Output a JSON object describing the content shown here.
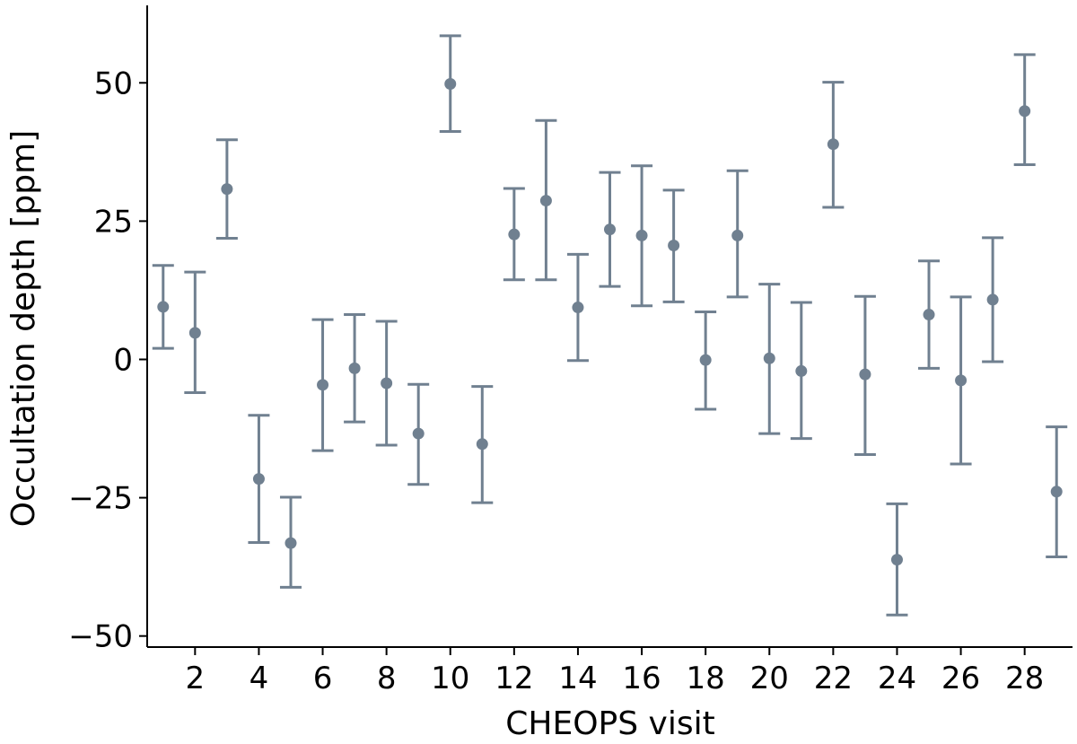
{
  "chart_data": {
    "type": "scatter",
    "xlabel": "CHEOPS visit",
    "ylabel": "Occultation depth [ppm]",
    "xlim": [
      0.5,
      29.5
    ],
    "ylim": [
      -52,
      64
    ],
    "xticks": [
      2,
      4,
      6,
      8,
      10,
      12,
      14,
      16,
      18,
      20,
      22,
      24,
      26,
      28
    ],
    "yticks": [
      -50,
      -25,
      0,
      25,
      50
    ],
    "ytick_labels": [
      "−50",
      "−25",
      "0",
      "25",
      "50"
    ],
    "grid": false,
    "marker_color": "#708090",
    "series": [
      {
        "points": [
          {
            "x": 1,
            "y": 9.5,
            "lo": 2,
            "hi": 17
          },
          {
            "x": 2,
            "y": 4.8,
            "lo": -6,
            "hi": 15.8
          },
          {
            "x": 3,
            "y": 30.8,
            "lo": 21.9,
            "hi": 39.7
          },
          {
            "x": 4,
            "y": -21.6,
            "lo": -33.1,
            "hi": -10.1
          },
          {
            "x": 5,
            "y": -33.2,
            "lo": -41.2,
            "hi": -24.9
          },
          {
            "x": 6,
            "y": -4.6,
            "lo": -16.5,
            "hi": 7.2
          },
          {
            "x": 7,
            "y": -1.6,
            "lo": -11.3,
            "hi": 8.1
          },
          {
            "x": 8,
            "y": -4.3,
            "lo": -15.5,
            "hi": 6.9
          },
          {
            "x": 9,
            "y": -13.4,
            "lo": -22.6,
            "hi": -4.5
          },
          {
            "x": 10,
            "y": 49.8,
            "lo": 41.2,
            "hi": 58.5
          },
          {
            "x": 11,
            "y": -15.3,
            "lo": -25.9,
            "hi": -4.9
          },
          {
            "x": 12,
            "y": 22.6,
            "lo": 14.4,
            "hi": 30.9
          },
          {
            "x": 13,
            "y": 28.7,
            "lo": 14.4,
            "hi": 43.2
          },
          {
            "x": 14,
            "y": 9.4,
            "lo": -0.2,
            "hi": 19
          },
          {
            "x": 15,
            "y": 23.5,
            "lo": 13.2,
            "hi": 33.8
          },
          {
            "x": 16,
            "y": 22.4,
            "lo": 9.7,
            "hi": 35
          },
          {
            "x": 17,
            "y": 20.6,
            "lo": 10.4,
            "hi": 30.6
          },
          {
            "x": 18,
            "y": -0.1,
            "lo": -9,
            "hi": 8.6
          },
          {
            "x": 19,
            "y": 22.4,
            "lo": 11.3,
            "hi": 34.1
          },
          {
            "x": 20,
            "y": 0.2,
            "lo": -13.4,
            "hi": 13.6
          },
          {
            "x": 21,
            "y": -2.1,
            "lo": -14.3,
            "hi": 10.3
          },
          {
            "x": 22,
            "y": 38.9,
            "lo": 27.5,
            "hi": 50.1
          },
          {
            "x": 23,
            "y": -2.7,
            "lo": -17.2,
            "hi": 11.4
          },
          {
            "x": 24,
            "y": -36.2,
            "lo": -46.2,
            "hi": -26.1
          },
          {
            "x": 25,
            "y": 8.1,
            "lo": -1.6,
            "hi": 17.8
          },
          {
            "x": 26,
            "y": -3.8,
            "lo": -18.9,
            "hi": 11.3
          },
          {
            "x": 27,
            "y": 10.8,
            "lo": -0.4,
            "hi": 22
          },
          {
            "x": 28,
            "y": 44.9,
            "lo": 35.2,
            "hi": 55.1
          },
          {
            "x": 29,
            "y": -23.9,
            "lo": -35.7,
            "hi": -12.2
          }
        ]
      }
    ]
  }
}
